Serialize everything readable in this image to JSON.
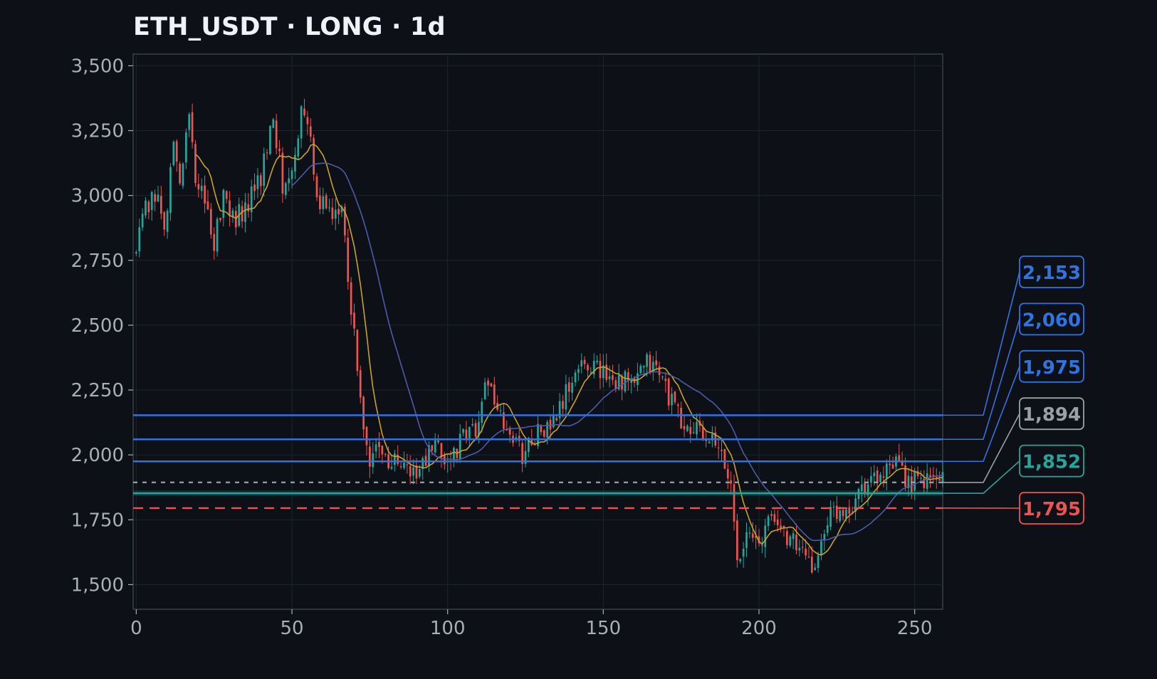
{
  "chart_data": {
    "type": "candlestick",
    "title": "ETH_USDT · LONG · 1d",
    "xlabel": "",
    "ylabel": "",
    "xlim": [
      -1,
      259
    ],
    "ylim": [
      1405,
      3545
    ],
    "x_ticks": [
      0,
      50,
      100,
      150,
      200,
      250
    ],
    "x_tick_labels": [
      "0",
      "50",
      "100",
      "150",
      "200",
      "250"
    ],
    "y_ticks": [
      1500,
      1750,
      2000,
      2250,
      2500,
      2750,
      3000,
      3250,
      3500
    ],
    "y_tick_labels": [
      "1,500",
      "1,750",
      "2,000",
      "2,250",
      "2,500",
      "2,750",
      "3,000",
      "3,250",
      "3,500"
    ],
    "grid": true,
    "colors": {
      "background": "#0d1017",
      "plot_border": "#3a3f4b",
      "grid": "#1e232d",
      "up": "#26a69a",
      "down": "#ef5350",
      "ma_fast": "#c9a227",
      "ma_slow": "#4d5ba8",
      "tick_text": "#a9aeb8",
      "title_text": "#f0f2f5"
    },
    "price_path_keypoints": [
      [
        0,
        2780
      ],
      [
        3,
        2950
      ],
      [
        6,
        3020
      ],
      [
        9,
        2850
      ],
      [
        12,
        3200
      ],
      [
        14,
        3050
      ],
      [
        17,
        3320
      ],
      [
        19,
        3080
      ],
      [
        22,
        2950
      ],
      [
        25,
        2830
      ],
      [
        28,
        3000
      ],
      [
        32,
        2920
      ],
      [
        36,
        2960
      ],
      [
        40,
        3080
      ],
      [
        44,
        3300
      ],
      [
        47,
        3050
      ],
      [
        50,
        3120
      ],
      [
        53,
        3320
      ],
      [
        56,
        3250
      ],
      [
        58,
        2950
      ],
      [
        61,
        2980
      ],
      [
        63,
        2880
      ],
      [
        66,
        3000
      ],
      [
        68,
        2700
      ],
      [
        71,
        2330
      ],
      [
        73,
        2080
      ],
      [
        75,
        1960
      ],
      [
        78,
        2070
      ],
      [
        80,
        1980
      ],
      [
        85,
        1960
      ],
      [
        90,
        1920
      ],
      [
        95,
        2020
      ],
      [
        100,
        1980
      ],
      [
        105,
        2060
      ],
      [
        110,
        2120
      ],
      [
        113,
        2310
      ],
      [
        116,
        2150
      ],
      [
        120,
        2080
      ],
      [
        124,
        2000
      ],
      [
        128,
        2080
      ],
      [
        133,
        2100
      ],
      [
        137,
        2200
      ],
      [
        141,
        2320
      ],
      [
        145,
        2360
      ],
      [
        150,
        2320
      ],
      [
        155,
        2290
      ],
      [
        160,
        2270
      ],
      [
        164,
        2350
      ],
      [
        168,
        2320
      ],
      [
        172,
        2200
      ],
      [
        176,
        2100
      ],
      [
        180,
        2090
      ],
      [
        184,
        2060
      ],
      [
        188,
        1990
      ],
      [
        191,
        1880
      ],
      [
        193,
        1620
      ],
      [
        196,
        1680
      ],
      [
        200,
        1660
      ],
      [
        204,
        1760
      ],
      [
        207,
        1720
      ],
      [
        210,
        1680
      ],
      [
        213,
        1640
      ],
      [
        216,
        1560
      ],
      [
        219,
        1600
      ],
      [
        222,
        1760
      ],
      [
        226,
        1790
      ],
      [
        230,
        1810
      ],
      [
        233,
        1890
      ],
      [
        236,
        1900
      ],
      [
        240,
        1920
      ],
      [
        244,
        1950
      ],
      [
        248,
        1900
      ],
      [
        252,
        1890
      ],
      [
        256,
        1910
      ],
      [
        259,
        1918
      ]
    ],
    "levels": [
      {
        "label": "2,153",
        "value": 2153,
        "style": "solid",
        "color": "#2f74e0"
      },
      {
        "label": "2,060",
        "value": 2060,
        "style": "solid",
        "color": "#2f74e0"
      },
      {
        "label": "1,975",
        "value": 1975,
        "style": "solid",
        "color": "#2f74e0"
      },
      {
        "label": "1,894",
        "value": 1894,
        "style": "dotted",
        "color": "#9aa0a8"
      },
      {
        "label": "1,852",
        "value": 1852,
        "style": "solid",
        "color": "#26a69a"
      },
      {
        "label": "1,795",
        "value": 1795,
        "style": "dashed",
        "color": "#ef5350"
      }
    ]
  }
}
